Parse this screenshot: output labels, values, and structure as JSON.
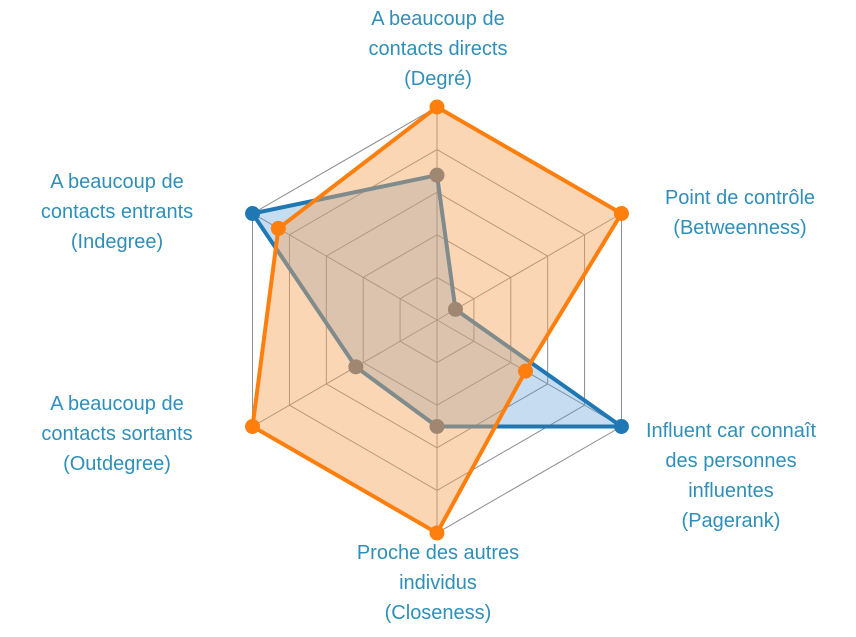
{
  "chart_data": {
    "type": "radar",
    "title": "",
    "axes": [
      {
        "lines": [
          "A beaucoup de",
          "contacts directs",
          "(Degré)"
        ]
      },
      {
        "lines": [
          "Point de contrôle",
          "(Betweenness)"
        ]
      },
      {
        "lines": [
          "Influent car connaît",
          "des personnes",
          "influentes",
          "(Pagerank)"
        ]
      },
      {
        "lines": [
          "Proche des autres",
          "individus",
          "(Closeness)"
        ]
      },
      {
        "lines": [
          "A beaucoup de",
          "contacts sortants",
          "(Outdegree)"
        ]
      },
      {
        "lines": [
          "A beaucoup de",
          "contacts entrants",
          "(Indegree)"
        ]
      }
    ],
    "rmax": 5,
    "rings": 5,
    "grid": true,
    "legend": "none",
    "series": [
      {
        "values": [
          3.4,
          0.5,
          5.0,
          2.5,
          2.2,
          5.0
        ],
        "stroke": "#1f77b4",
        "fill": "#5b9bd5",
        "fill_opacity": 0.35,
        "marker": "#5a6f86"
      },
      {
        "values": [
          5.0,
          5.0,
          2.4,
          5.0,
          5.0,
          4.3
        ],
        "stroke": "#ff7f0e",
        "fill": "#f7a35c",
        "fill_opacity": 0.45,
        "marker": "#ff7f0e"
      }
    ]
  }
}
